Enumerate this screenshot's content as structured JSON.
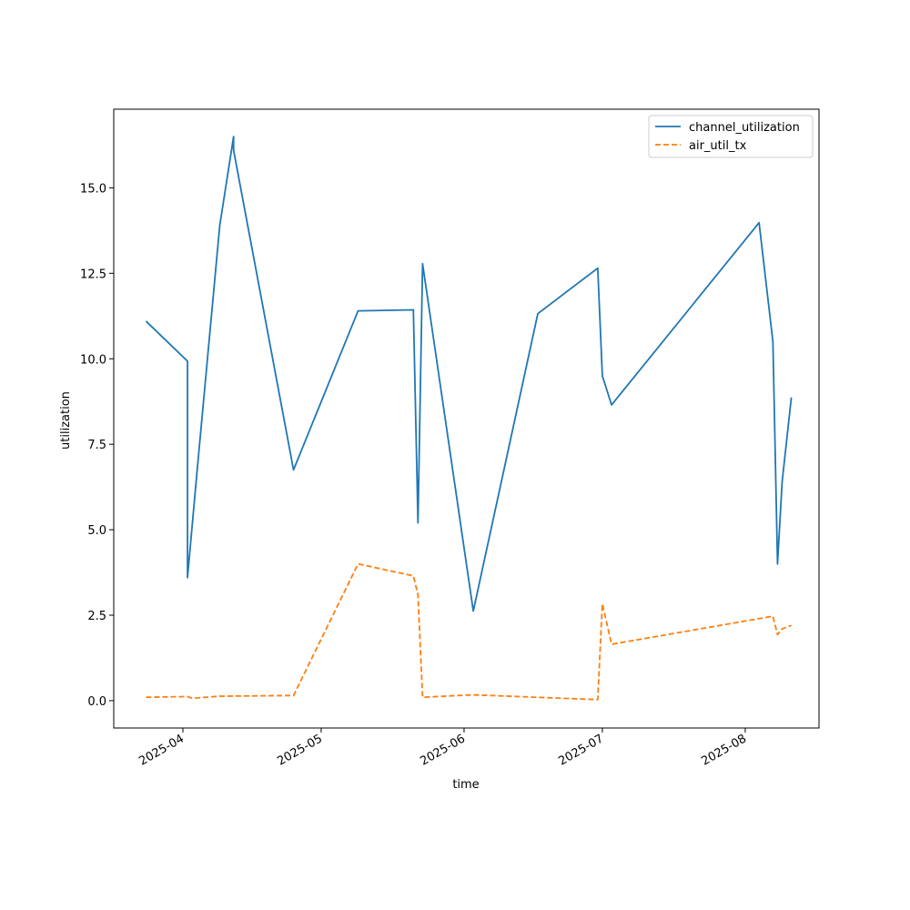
{
  "chart_data": {
    "type": "line",
    "xlabel": "time",
    "ylabel": "utilization",
    "x_ticks": [
      "2025-04-01",
      "2025-05-01",
      "2025-06-01",
      "2025-07-01",
      "2025-08-01"
    ],
    "x_tick_labels": [
      "2025-04",
      "2025-05",
      "2025-06",
      "2025-07",
      "2025-08"
    ],
    "y_ticks": [
      0.0,
      2.5,
      5.0,
      7.5,
      10.0,
      12.5,
      15.0
    ],
    "y_tick_labels": [
      "0.0",
      "2.5",
      "5.0",
      "7.5",
      "10.0",
      "12.5",
      "15.0"
    ],
    "xlim": [
      "2025-03-17",
      "2025-08-17"
    ],
    "ylim": [
      -0.8,
      17.3
    ],
    "grid": false,
    "legend_position": "top-right",
    "series": [
      {
        "name": "channel_utilization",
        "color": "#1f77b4",
        "dash": "solid",
        "points": [
          [
            "2025-03-24",
            11.1
          ],
          [
            "2025-04-02",
            9.93
          ],
          [
            "2025-04-02",
            3.6
          ],
          [
            "2025-04-04",
            6.6
          ],
          [
            "2025-04-09",
            13.9
          ],
          [
            "2025-04-12",
            16.5
          ],
          [
            "2025-04-12",
            16.1
          ],
          [
            "2025-04-25",
            6.75
          ],
          [
            "2025-05-09",
            11.4
          ],
          [
            "2025-05-21",
            11.43
          ],
          [
            "2025-05-22",
            5.2
          ],
          [
            "2025-05-23",
            12.78
          ],
          [
            "2025-06-03",
            2.62
          ],
          [
            "2025-06-17",
            11.32
          ],
          [
            "2025-06-30",
            12.65
          ],
          [
            "2025-07-01",
            9.5
          ],
          [
            "2025-07-03",
            8.65
          ],
          [
            "2025-08-04",
            13.98
          ],
          [
            "2025-08-07",
            10.5
          ],
          [
            "2025-08-08",
            4.0
          ],
          [
            "2025-08-09",
            6.4
          ],
          [
            "2025-08-11",
            8.87
          ]
        ]
      },
      {
        "name": "air_util_tx",
        "color": "#ff7f0e",
        "dash": "dashed",
        "points": [
          [
            "2025-03-24",
            0.1
          ],
          [
            "2025-04-02",
            0.12
          ],
          [
            "2025-04-03",
            0.07
          ],
          [
            "2025-04-09",
            0.13
          ],
          [
            "2025-04-25",
            0.15
          ],
          [
            "2025-05-09",
            4.0
          ],
          [
            "2025-05-21",
            3.65
          ],
          [
            "2025-05-22",
            3.1
          ],
          [
            "2025-05-23",
            0.1
          ],
          [
            "2025-06-03",
            0.17
          ],
          [
            "2025-06-30",
            0.03
          ],
          [
            "2025-07-01",
            2.83
          ],
          [
            "2025-07-03",
            1.65
          ],
          [
            "2025-08-07",
            2.47
          ],
          [
            "2025-08-08",
            1.93
          ],
          [
            "2025-08-09",
            2.1
          ],
          [
            "2025-08-11",
            2.2
          ]
        ]
      }
    ]
  }
}
